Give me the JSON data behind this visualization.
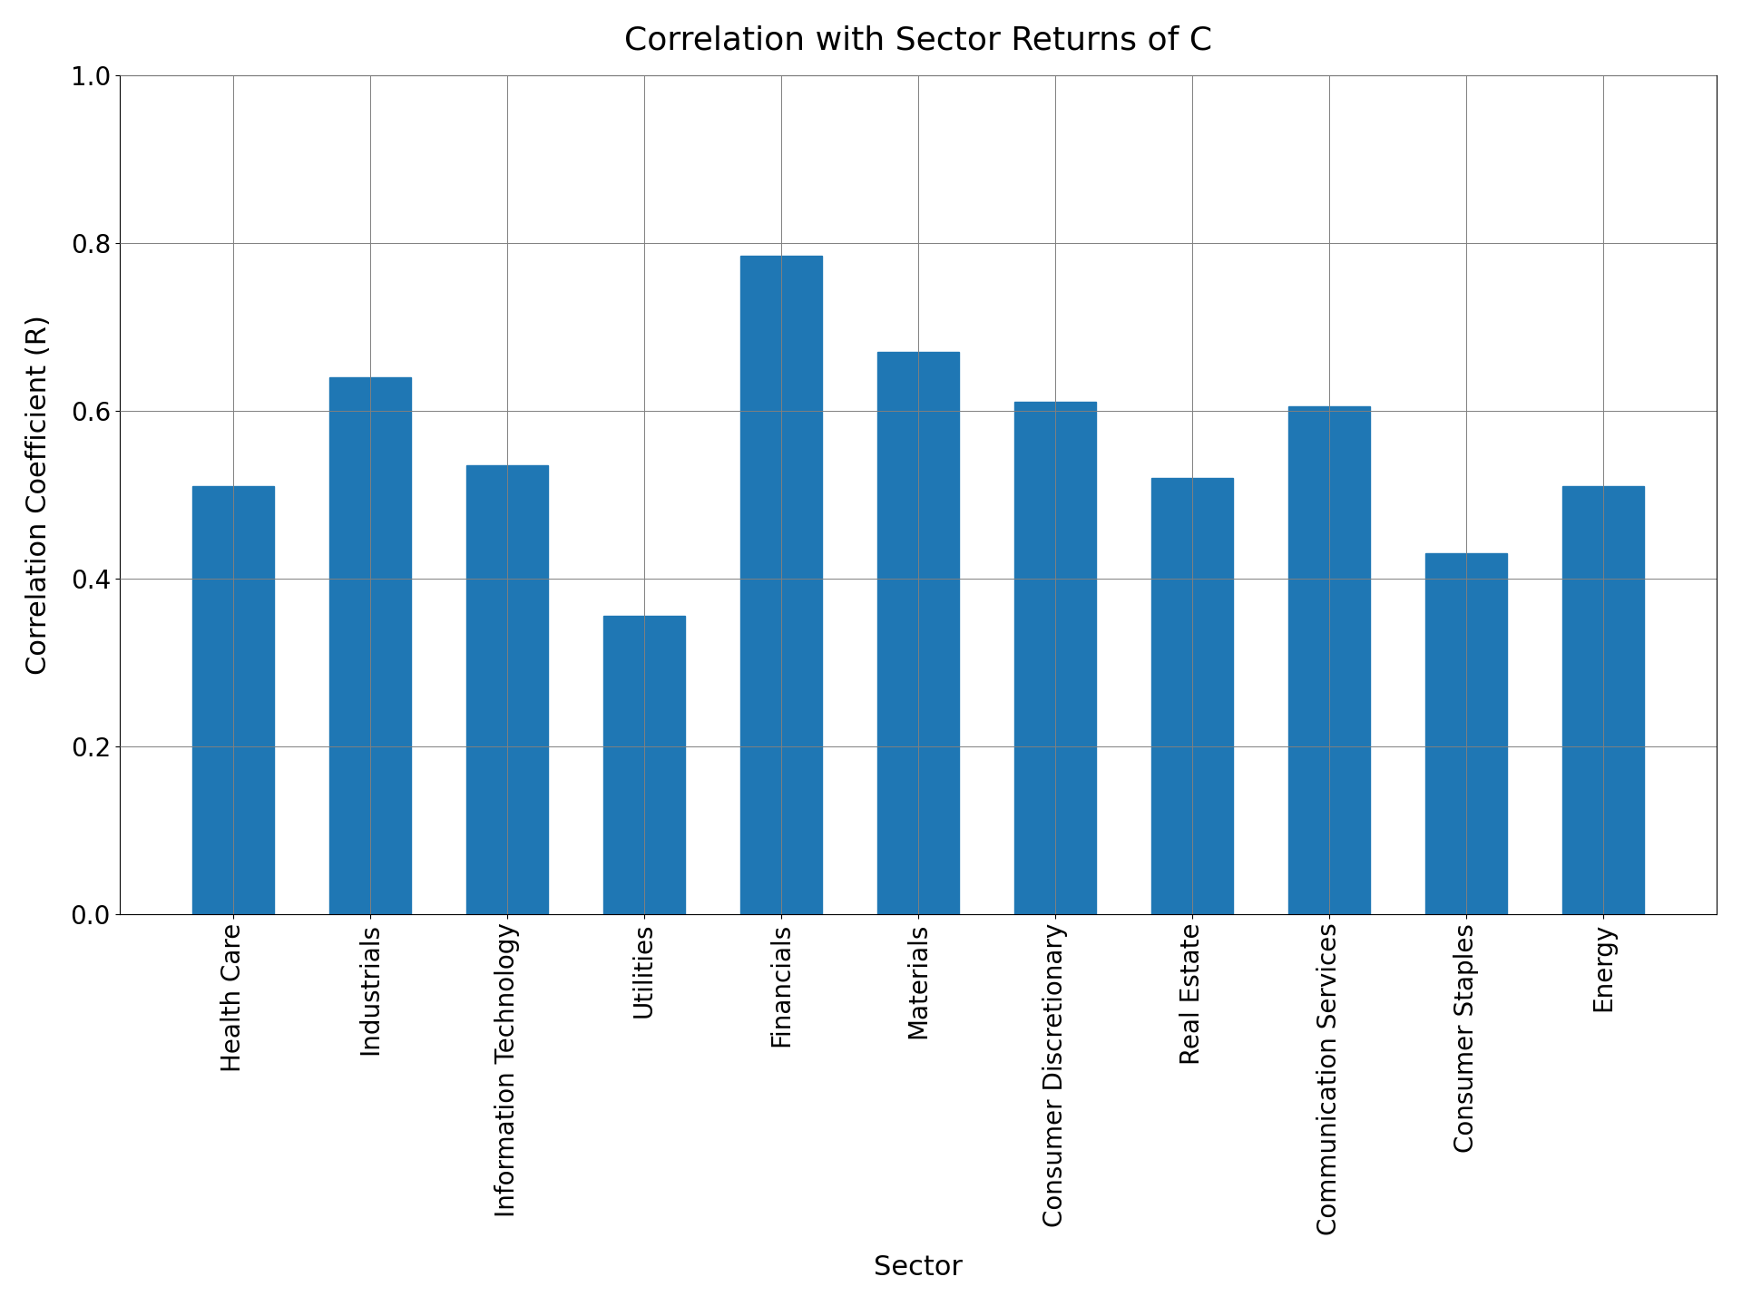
{
  "title": "Correlation with Sector Returns of C",
  "xlabel": "Sector",
  "ylabel": "Correlation Coefficient (R)",
  "categories": [
    "Health Care",
    "Industrials",
    "Information Technology",
    "Utilities",
    "Financials",
    "Materials",
    "Consumer Discretionary",
    "Real Estate",
    "Communication Services",
    "Consumer Staples",
    "Energy"
  ],
  "values": [
    0.51,
    0.64,
    0.535,
    0.355,
    0.785,
    0.67,
    0.61,
    0.52,
    0.605,
    0.43,
    0.51
  ],
  "bar_color": "#1f77b4",
  "ylim": [
    0.0,
    1.0
  ],
  "yticks": [
    0.0,
    0.2,
    0.4,
    0.6,
    0.8,
    1.0
  ],
  "title_fontsize": 26,
  "axis_label_fontsize": 22,
  "tick_fontsize": 20,
  "background_color": "#ffffff",
  "grid": true,
  "bar_width": 0.6,
  "xtick_rotation": 90,
  "xtick_ha": "center"
}
